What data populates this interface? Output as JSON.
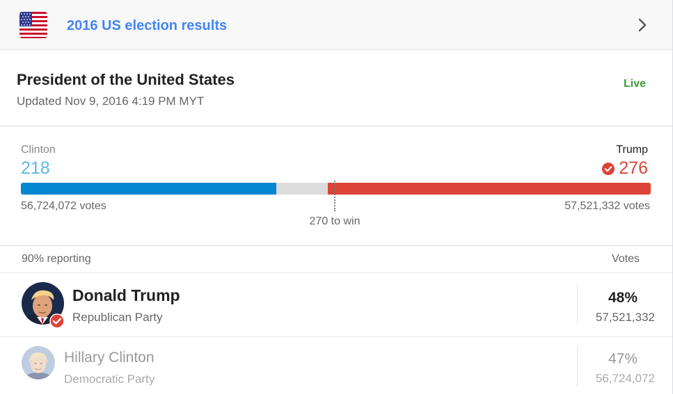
{
  "header": {
    "title": "2016 US election results",
    "flag_icon": "us-flag-icon",
    "chevron_icon": "chevron-right-icon"
  },
  "race": {
    "title": "President of the United States",
    "updated": "Updated Nov 9, 2016 4:19 PM MYT",
    "status": "Live"
  },
  "electoral": {
    "total": 538,
    "to_win": 270,
    "to_win_label": "270 to win",
    "left": {
      "name": "Clinton",
      "ev": 218,
      "ev_label": "218",
      "votes_label": "56,724,072 votes",
      "color": "#0288d1"
    },
    "right": {
      "name": "Trump",
      "ev": 276,
      "ev_label": "276",
      "votes_label": "57,521,332 votes",
      "color": "#db4437",
      "winner": true
    }
  },
  "table": {
    "reporting": "90% reporting",
    "votes_header": "Votes",
    "rows": [
      {
        "name": "Donald Trump",
        "party": "Republican Party",
        "pct": "48%",
        "votes": "57,521,332",
        "winner": true
      },
      {
        "name": "Hillary Clinton",
        "party": "Democratic Party",
        "pct": "47%",
        "votes": "56,724,072",
        "winner": false
      }
    ]
  },
  "colors": {
    "accent_blue": "#4285f4",
    "live_green": "#3a9c39",
    "democrat_blue": "#0288d1",
    "republican_red": "#db4437"
  }
}
